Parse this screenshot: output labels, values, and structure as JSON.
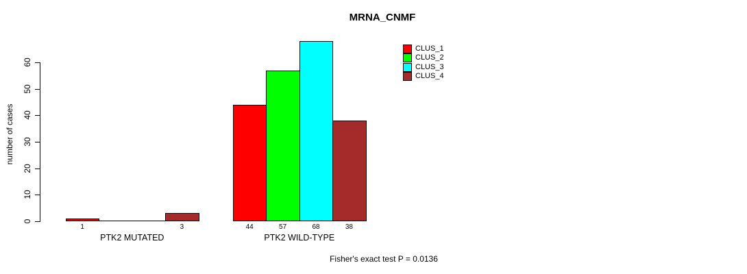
{
  "title": "MRNA_CNMF",
  "chart_data": {
    "type": "bar",
    "title": "MRNA_CNMF",
    "xlabel": "",
    "ylabel": "number of cases",
    "categories": [
      "PTK2 MUTATED",
      "PTK2 WILD-TYPE"
    ],
    "series": [
      {
        "name": "CLUS_1",
        "color": "#ff0000",
        "values": [
          1,
          44
        ]
      },
      {
        "name": "CLUS_2",
        "color": "#00ff00",
        "values": [
          0,
          57
        ]
      },
      {
        "name": "CLUS_3",
        "color": "#00ffff",
        "values": [
          0,
          68
        ]
      },
      {
        "name": "CLUS_4",
        "color": "#a52a2a",
        "values": [
          3,
          38
        ]
      }
    ],
    "bar_value_labels": [
      [
        "1",
        "",
        "",
        "3"
      ],
      [
        "44",
        "57",
        "68",
        "38"
      ]
    ],
    "yticks": [
      0,
      10,
      20,
      30,
      40,
      50,
      60
    ],
    "ylim": [
      0,
      68
    ],
    "grid": false,
    "legend": {
      "position": "top-right",
      "entries": [
        "CLUS_1",
        "CLUS_2",
        "CLUS_3",
        "CLUS_4"
      ]
    },
    "annotation": "Fisher's exact test P = 0.0136"
  }
}
